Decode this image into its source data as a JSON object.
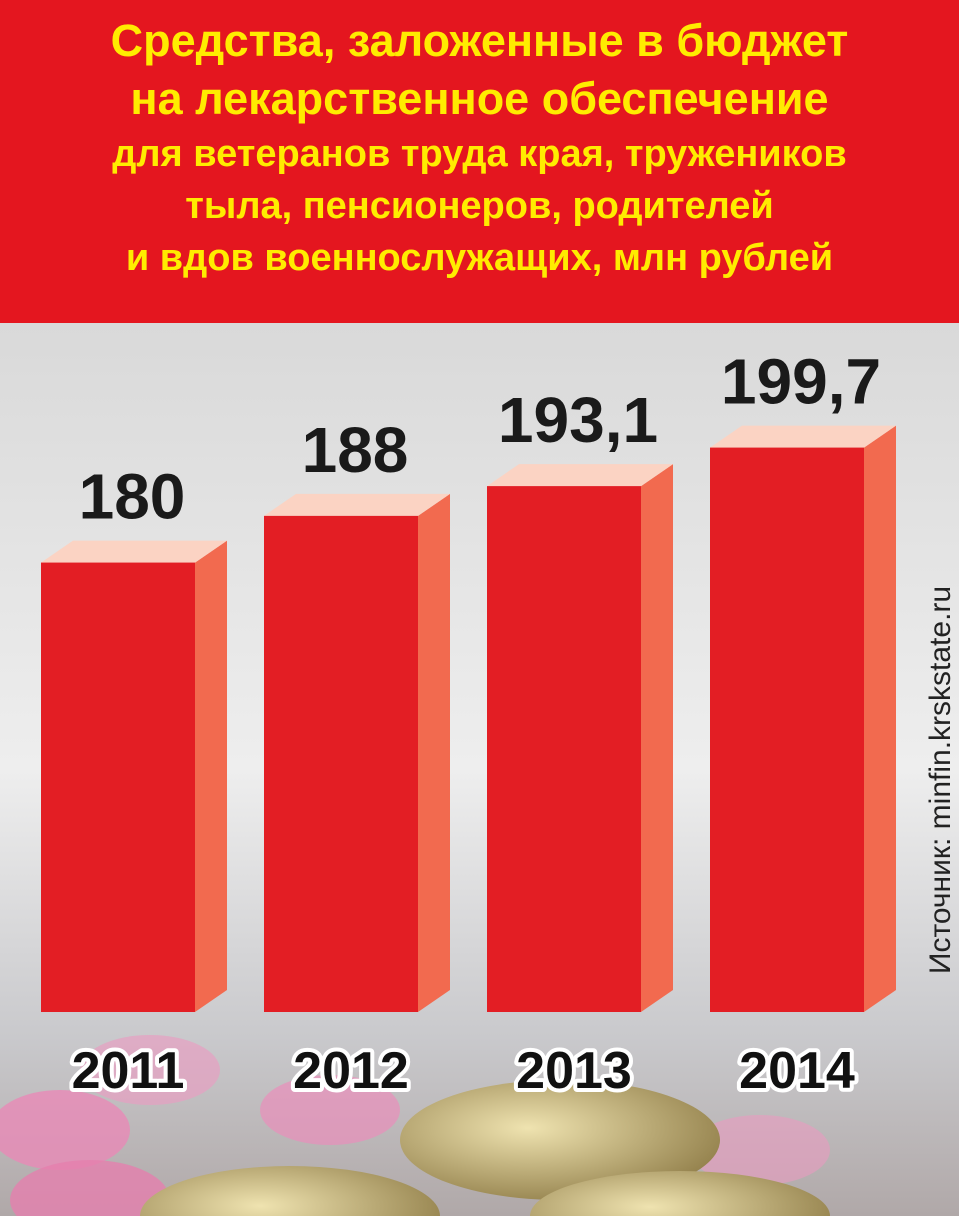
{
  "chart_data": {
    "type": "bar3d",
    "title": "Средства, заложенные в бюджет\nна лекарственное обеспечение",
    "subtitle": "для ветеранов труда края, тружеников\nтыла, пенсионеров, родителей\nи вдов военнослужащих, млн рублей",
    "categories": [
      "2011",
      "2012",
      "2013",
      "2014"
    ],
    "values": [
      180,
      188,
      193.1,
      199.7
    ],
    "value_labels": [
      "180",
      "188",
      "193,1",
      "199,7"
    ],
    "ylim": [
      103,
      250
    ],
    "color": "#e31e24",
    "source": "Источник: minfin.krskstate.ru"
  }
}
